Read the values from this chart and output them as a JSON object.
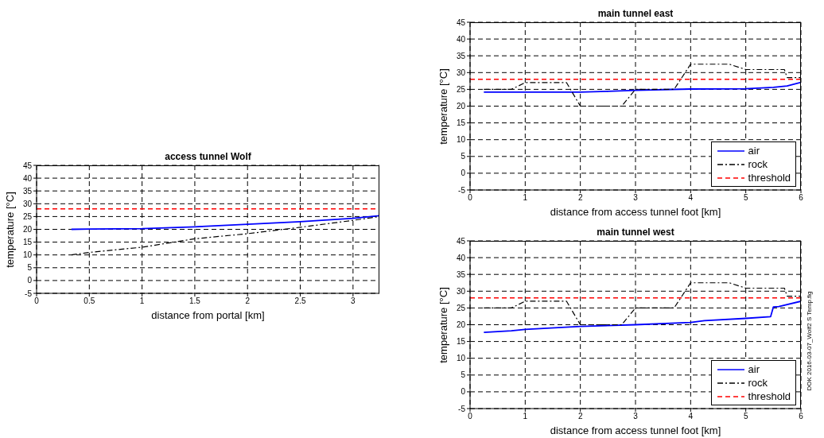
{
  "chart_data": [
    {
      "type": "line",
      "title": "access tunnel Wolf",
      "xlabel": "distance from portal [km]",
      "ylabel": "temperature [°C]",
      "xlim": [
        0,
        3.25
      ],
      "xticks": [
        0,
        0.5,
        1,
        1.5,
        2,
        2.5,
        3
      ],
      "ylim": [
        -5,
        45
      ],
      "yticks": [
        -5,
        0,
        5,
        10,
        15,
        20,
        25,
        30,
        35,
        40,
        45
      ],
      "grid": true,
      "legend": false,
      "series": [
        {
          "color": "#0000ff",
          "line_style": "solid",
          "x": [
            0.33,
            0.5,
            1,
            1.5,
            2,
            2.5,
            3,
            3.25
          ],
          "values": [
            20,
            20.1,
            20.3,
            21,
            22,
            23,
            24.3,
            25.3
          ]
        },
        {
          "color": "#000000",
          "line_style": "dashed",
          "x": [
            0.33,
            0.5,
            1,
            1.5,
            2,
            2.5,
            3,
            3.25
          ],
          "values": [
            10,
            11,
            13,
            16.3,
            18.3,
            20.8,
            23.5,
            25
          ]
        }
      ],
      "ref_lines": [
        {
          "axis": "y",
          "value": 28,
          "color": "#ff0000",
          "line_style": "dashed"
        }
      ]
    },
    {
      "type": "line",
      "title": "main tunnel east",
      "xlabel": "distance from access tunnel foot [km]",
      "ylabel": "temperature [°C]",
      "xlim": [
        0,
        6
      ],
      "xticks": [
        0,
        1,
        2,
        3,
        4,
        5,
        6
      ],
      "ylim": [
        -5,
        45
      ],
      "yticks": [
        -5,
        0,
        5,
        10,
        15,
        20,
        25,
        30,
        35,
        40,
        45
      ],
      "grid": true,
      "legend": "bottom right",
      "series": [
        {
          "name": "air",
          "color": "#0000ff",
          "line_style": "solid",
          "x": [
            0.25,
            1,
            2,
            2.5,
            3,
            4,
            5,
            5.5,
            5.75,
            6
          ],
          "values": [
            24.2,
            24.2,
            24.2,
            24.4,
            24.7,
            25.1,
            25.2,
            25.6,
            26,
            27.1
          ]
        },
        {
          "name": "rock",
          "color": "#000000",
          "line_style": "dashed",
          "x": [
            0.25,
            0.75,
            1,
            1.75,
            2,
            2.75,
            3,
            3.7,
            4,
            4.7,
            5,
            5.7,
            5.75,
            6
          ],
          "values": [
            25,
            25,
            27,
            27,
            20,
            20,
            25,
            25,
            32.5,
            32.5,
            30.9,
            30.9,
            28.5,
            28.5
          ]
        }
      ],
      "ref_lines": [
        {
          "axis": "y",
          "value": 28,
          "label": "threshold",
          "color": "#ff0000",
          "line_style": "dashed"
        }
      ]
    },
    {
      "type": "line",
      "title": "main tunnel west",
      "xlabel": "distance from access tunnel foot [km]",
      "ylabel": "temperature [°C]",
      "xlim": [
        0,
        6
      ],
      "xticks": [
        0,
        1,
        2,
        3,
        4,
        5,
        6
      ],
      "ylim": [
        -5,
        45
      ],
      "yticks": [
        -5,
        0,
        5,
        10,
        15,
        20,
        25,
        30,
        35,
        40,
        45
      ],
      "grid": true,
      "legend": "bottom right",
      "series": [
        {
          "name": "air",
          "color": "#0000ff",
          "line_style": "solid",
          "x": [
            0.25,
            0.75,
            1,
            2,
            3,
            4,
            4.25,
            5,
            5.45,
            5.5,
            5.6,
            6
          ],
          "values": [
            17.7,
            18.2,
            18.6,
            19.5,
            20,
            20.7,
            21.2,
            21.9,
            22.4,
            25.3,
            25.4,
            27
          ]
        },
        {
          "name": "rock",
          "color": "#000000",
          "line_style": "dashed",
          "x": [
            0.25,
            0.75,
            1,
            1.75,
            2,
            2.75,
            3,
            3.7,
            4,
            4.7,
            5,
            5.7,
            5.75,
            6
          ],
          "values": [
            25,
            25,
            27,
            27,
            20,
            20,
            25,
            25,
            32.5,
            32.5,
            30.9,
            30.9,
            28.5,
            28.5
          ]
        }
      ],
      "ref_lines": [
        {
          "axis": "y",
          "value": 28,
          "label": "threshold",
          "color": "#ff0000",
          "line_style": "dashed"
        }
      ],
      "annotations": [
        "DOK 2016-03-07_Wolf2 S Temp.fig"
      ]
    }
  ]
}
